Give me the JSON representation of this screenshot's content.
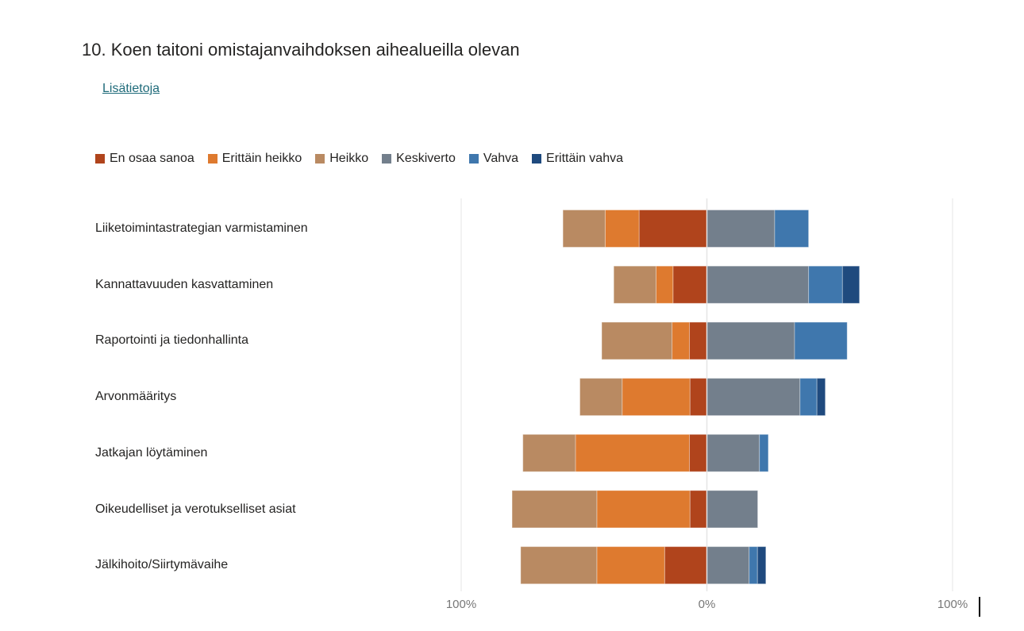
{
  "title": "10.  Koen taitoni omistajanvaihdoksen aihealueilla olevan",
  "link": "Lisätietoja",
  "chart_data": {
    "type": "bar",
    "orientation": "horizontal",
    "stacking": "diverging",
    "categories": [
      "Liiketoimintastrategian varmistaminen",
      "Kannattavuuden kasvattaminen",
      "Raportointi ja tiedonhallinta",
      "Arvonmääritys",
      "Jatkajan löytäminen",
      "Oikeudelliset ja verotukselliset asiat",
      "Jälkihoito/Siirtymävaihe"
    ],
    "series": [
      {
        "name": "En osaa sanoa",
        "side": "negative",
        "color": "#b0441c",
        "values": [
          27.6,
          13.8,
          7.1,
          6.9,
          7.1,
          6.9,
          17.2
        ]
      },
      {
        "name": "Erittäin heikko",
        "side": "negative",
        "color": "#de7a2f",
        "values": [
          13.8,
          6.9,
          7.1,
          27.6,
          46.4,
          37.9,
          27.6
        ]
      },
      {
        "name": "Heikko",
        "side": "negative",
        "color": "#b98a62",
        "values": [
          17.2,
          17.2,
          28.6,
          17.2,
          21.4,
          34.5,
          31.0
        ]
      },
      {
        "name": "Keskiverto",
        "side": "positive",
        "color": "#737f8c",
        "values": [
          27.6,
          41.4,
          35.7,
          37.9,
          21.4,
          20.7,
          17.2
        ]
      },
      {
        "name": "Vahva",
        "side": "positive",
        "color": "#3f77ad",
        "values": [
          13.8,
          13.8,
          21.4,
          6.9,
          3.6,
          0,
          3.4
        ]
      },
      {
        "name": "Erittäin vahva",
        "side": "positive",
        "color": "#1f4a7e",
        "values": [
          0,
          6.9,
          0,
          3.4,
          0,
          0,
          3.4
        ]
      }
    ],
    "xlim": [
      -100,
      100
    ],
    "tick_labels": [
      "100%",
      "0%",
      "100%"
    ],
    "grid": true,
    "legend_position": "top-left"
  }
}
